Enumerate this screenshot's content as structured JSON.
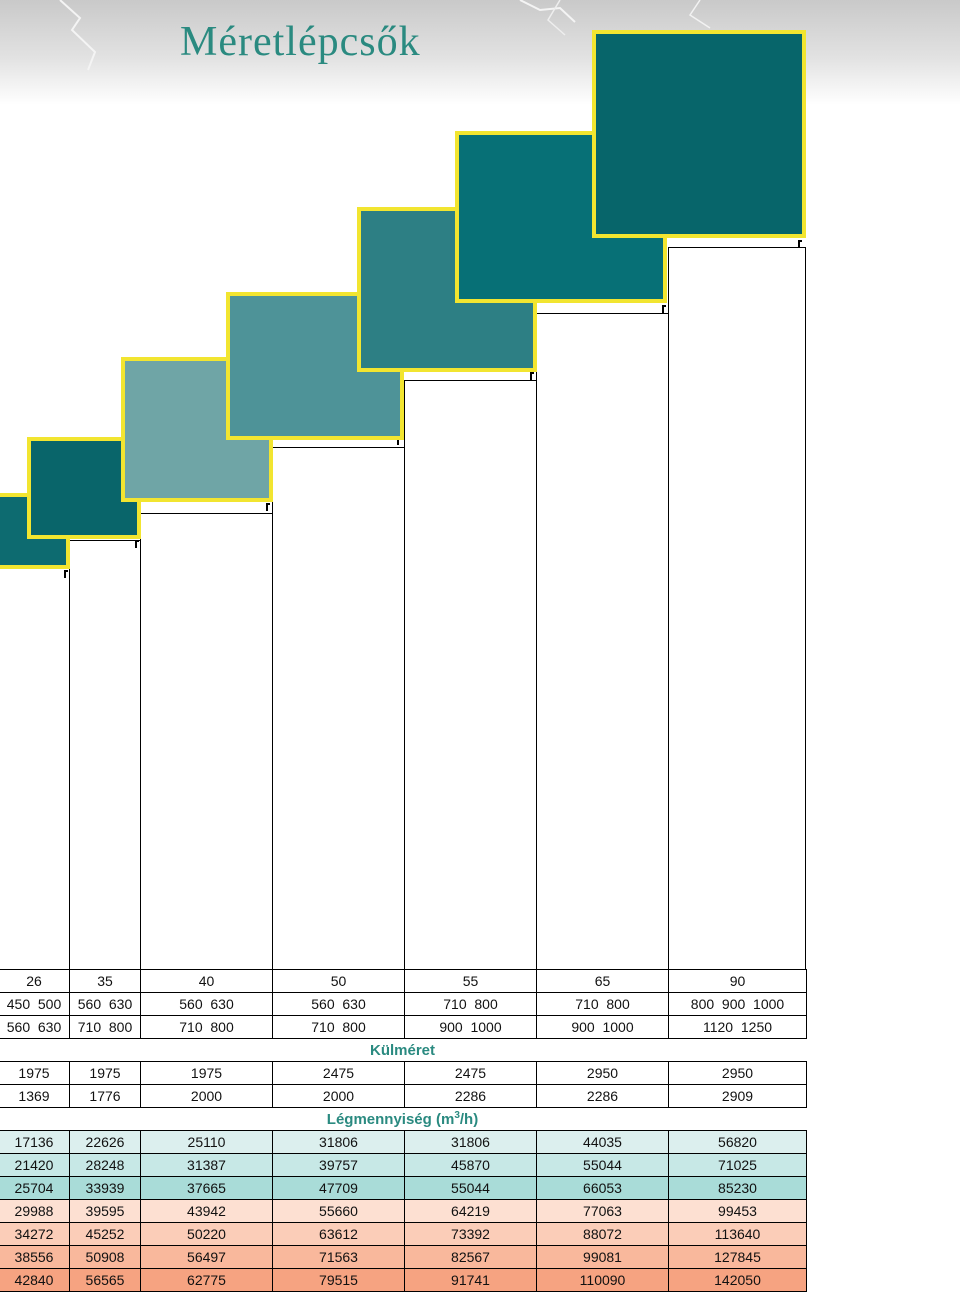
{
  "title": "Méretlépcsők",
  "colors": {
    "title": "#2a8a80",
    "box_border": "#f2e530",
    "boxes": [
      "#0d6b70",
      "#09656a",
      "#6fa5a6",
      "#4e9398",
      "#2d7f84",
      "#077076",
      "#07656a"
    ]
  },
  "table": {
    "sizes": [
      "26",
      "35",
      "40",
      "50",
      "55",
      "65",
      "90"
    ],
    "dim_a": [
      "450  500",
      "560  630",
      "560  630",
      "560  630",
      "710  800",
      "710  800",
      "800  900  1000"
    ],
    "dim_b": [
      "560  630",
      "710  800",
      "710  800",
      "710  800",
      "900  1000",
      "900  1000",
      "1120  1250"
    ],
    "section_kulmeret": "Külméret",
    "outer_a": [
      "1975",
      "1975",
      "1975",
      "2475",
      "2475",
      "2950",
      "2950"
    ],
    "outer_b": [
      "1369",
      "1776",
      "2000",
      "2000",
      "2286",
      "2286",
      "2909"
    ],
    "section_legmennyiseg_prefix": "Légmennyiség (m",
    "section_legmennyiseg_sup": "3",
    "section_legmennyiseg_suffix": "/h)",
    "airflow": [
      [
        "17136",
        "22626",
        "25110",
        "31806",
        "31806",
        "44035",
        "56820"
      ],
      [
        "21420",
        "28248",
        "31387",
        "39757",
        "45870",
        "55044",
        "71025"
      ],
      [
        "25704",
        "33939",
        "37665",
        "47709",
        "55044",
        "66053",
        "85230"
      ],
      [
        "29988",
        "39595",
        "43942",
        "55660",
        "64219",
        "77063",
        "99453"
      ],
      [
        "34272",
        "45252",
        "50220",
        "63612",
        "73392",
        "88072",
        "113640"
      ],
      [
        "38556",
        "50908",
        "56497",
        "71563",
        "82567",
        "99081",
        "127845"
      ],
      [
        "42840",
        "56565",
        "62775",
        "79515",
        "91741",
        "110090",
        "142050"
      ]
    ]
  }
}
